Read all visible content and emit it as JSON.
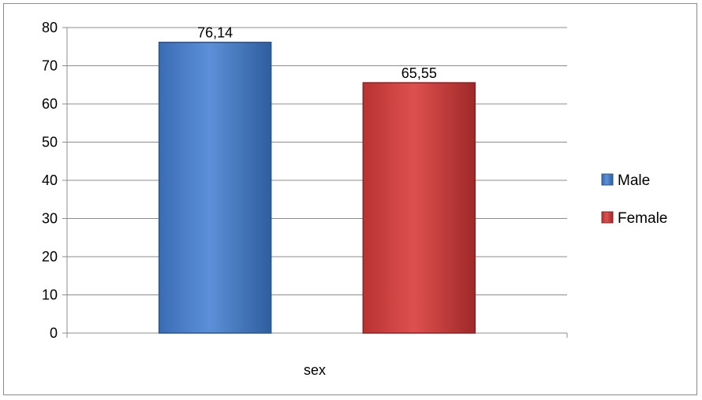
{
  "chart_data": {
    "type": "bar",
    "categories": [
      "sex"
    ],
    "series": [
      {
        "name": "Male",
        "values": [
          76.14
        ],
        "label": "76,14",
        "color": "#4a7fc8"
      },
      {
        "name": "Female",
        "values": [
          65.55
        ],
        "label": "65,55",
        "color": "#c93c3c"
      }
    ],
    "title": "",
    "xlabel": "sex",
    "ylabel": "",
    "ylim": [
      0,
      80
    ],
    "yticks": [
      "0",
      "10",
      "20",
      "30",
      "40",
      "50",
      "60",
      "70",
      "80"
    ],
    "grid": true,
    "legend": "right"
  }
}
